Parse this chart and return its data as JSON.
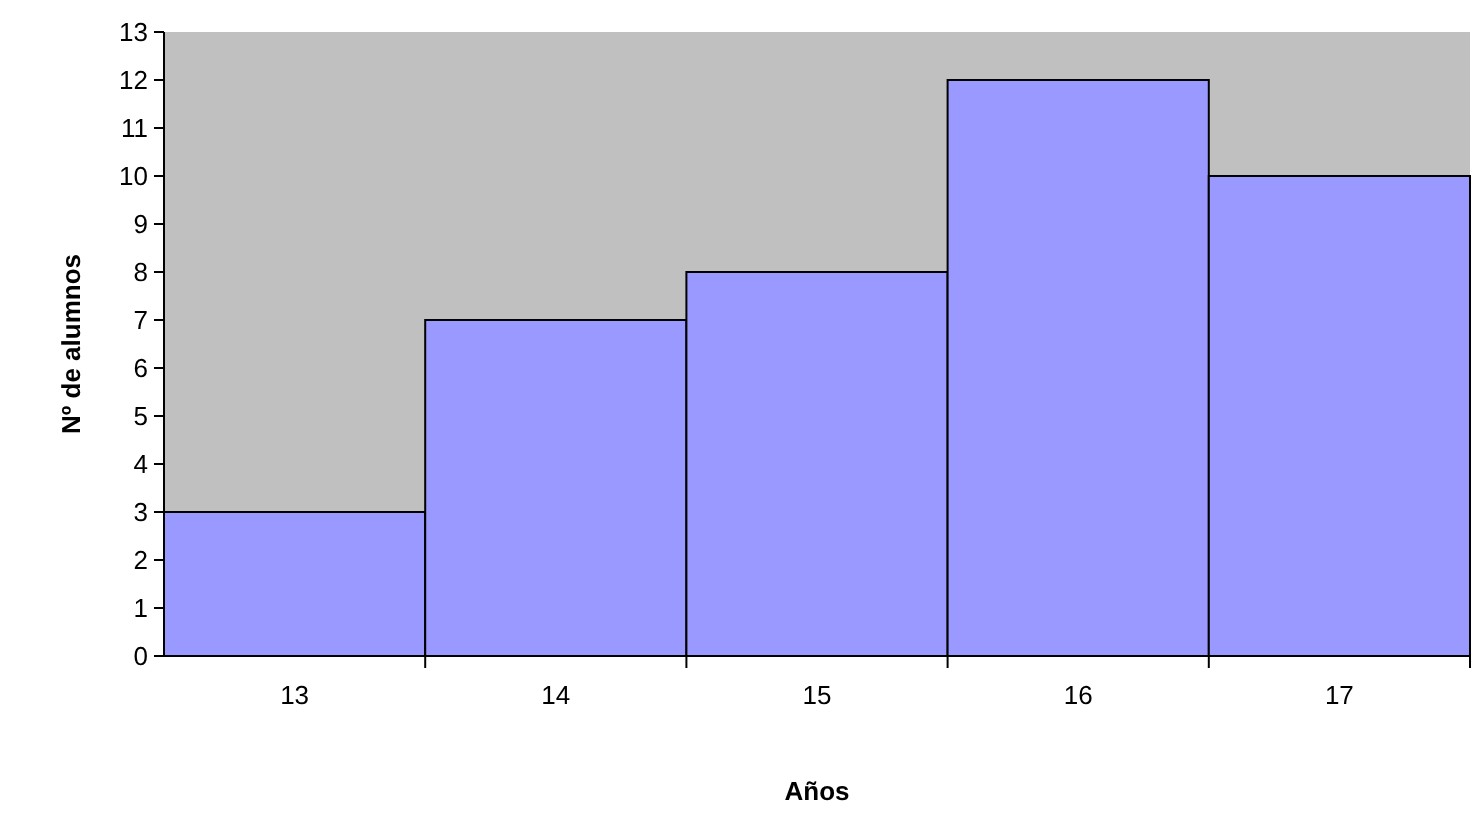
{
  "chart_data": {
    "type": "bar",
    "xlabel": "Años",
    "ylabel": "Nº de alumnos",
    "categories": [
      "13",
      "14",
      "15",
      "16",
      "17"
    ],
    "values": [
      3,
      7,
      8,
      12,
      10
    ],
    "color": "#9999ff",
    "ylim": [
      0,
      13
    ],
    "yticks": [
      0,
      1,
      2,
      3,
      4,
      5,
      6,
      7,
      8,
      9,
      10,
      11,
      12,
      13
    ],
    "grid": false
  }
}
